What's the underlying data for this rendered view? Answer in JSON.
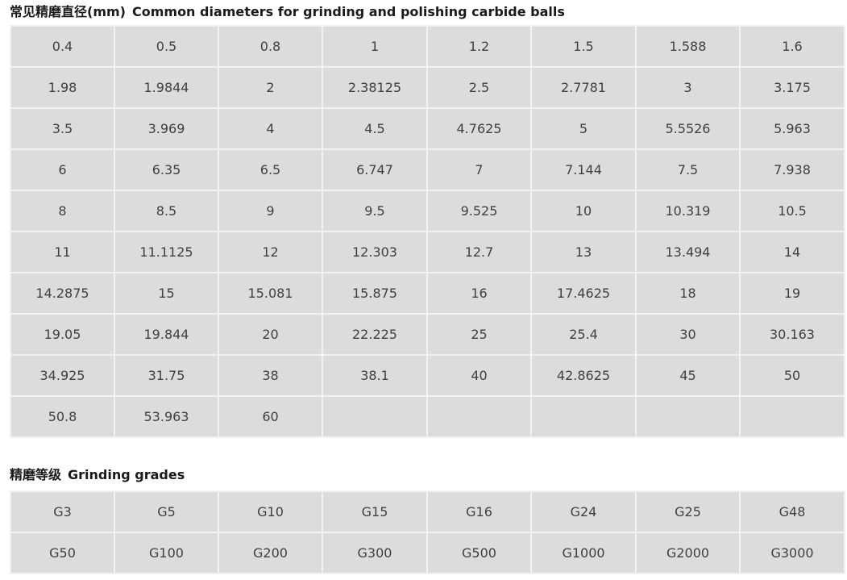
{
  "diameters_section": {
    "title_zh": "常见精磨直径(mm)",
    "title_en": "Common diameters for grinding and polishing carbide balls",
    "rows": [
      [
        "0.4",
        "0.5",
        "0.8",
        "1",
        "1.2",
        "1.5",
        "1.588",
        "1.6"
      ],
      [
        "1.98",
        "1.9844",
        "2",
        "2.38125",
        "2.5",
        "2.7781",
        "3",
        "3.175"
      ],
      [
        "3.5",
        "3.969",
        "4",
        "4.5",
        "4.7625",
        "5",
        "5.5526",
        "5.963"
      ],
      [
        "6",
        "6.35",
        "6.5",
        "6.747",
        "7",
        "7.144",
        "7.5",
        "7.938"
      ],
      [
        "8",
        "8.5",
        "9",
        "9.5",
        "9.525",
        "10",
        "10.319",
        "10.5"
      ],
      [
        "11",
        "11.1125",
        "12",
        "12.303",
        "12.7",
        "13",
        "13.494",
        "14"
      ],
      [
        "14.2875",
        "15",
        "15.081",
        "15.875",
        "16",
        "17.4625",
        "18",
        "19"
      ],
      [
        "19.05",
        "19.844",
        "20",
        "22.225",
        "25",
        "25.4",
        "30",
        "30.163"
      ],
      [
        "34.925",
        "31.75",
        "38",
        "38.1",
        "40",
        "42.8625",
        "45",
        "50"
      ],
      [
        "50.8",
        "53.963",
        "60",
        "",
        "",
        "",
        "",
        ""
      ]
    ]
  },
  "grades_section": {
    "title_zh": "精磨等级",
    "title_en": "Grinding grades",
    "rows": [
      [
        "G3",
        "G5",
        "G10",
        "G15",
        "G16",
        "G24",
        "G25",
        "G48"
      ],
      [
        "G50",
        "G100",
        "G200",
        "G300",
        "G500",
        "G1000",
        "G2000",
        "G3000"
      ]
    ]
  },
  "colors": {
    "cell_background": "#dcdcdc",
    "grid_line": "#f2f2f2",
    "title_text": "#1a1a1a",
    "cell_text": "#3f3f3f"
  }
}
